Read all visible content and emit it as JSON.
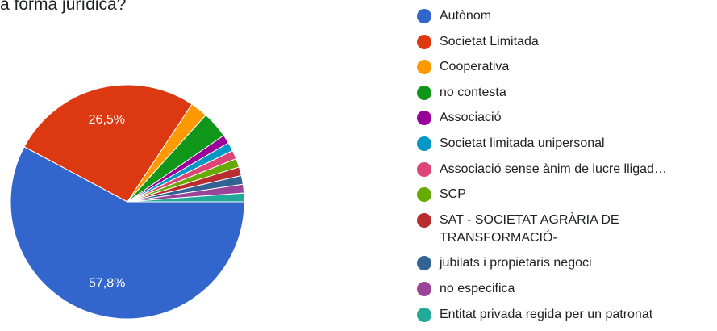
{
  "chart_data": {
    "type": "pie",
    "title": "a forma jurídica?",
    "categories": [
      "Autònom",
      "Societat Limitada",
      "Cooperativa",
      "no contesta",
      "Associació",
      "Societat limitada unipersonal",
      "Associació sense ànim de lucre lligad…",
      "SCP",
      "SAT - SOCIETAT AGRÀRIA DE TRANSFORMACIÓ-",
      "jubilats i propietaris negoci",
      "no especifica",
      "Entitat privada regida per un patronat"
    ],
    "values": [
      57.8,
      26.5,
      2.4,
      3.7,
      1.2,
      1.2,
      1.2,
      1.2,
      1.2,
      1.2,
      1.2,
      1.2
    ],
    "value_labels": [
      "57,8%",
      "26,5%",
      null,
      null,
      null,
      null,
      null,
      null,
      null,
      null,
      null,
      null
    ],
    "colors": [
      "#3366cc",
      "#dc3912",
      "#ff9900",
      "#109618",
      "#990099",
      "#0099c6",
      "#dd4477",
      "#66aa00",
      "#b82e2e",
      "#316395",
      "#994499",
      "#22aa99"
    ],
    "legend": "right"
  }
}
